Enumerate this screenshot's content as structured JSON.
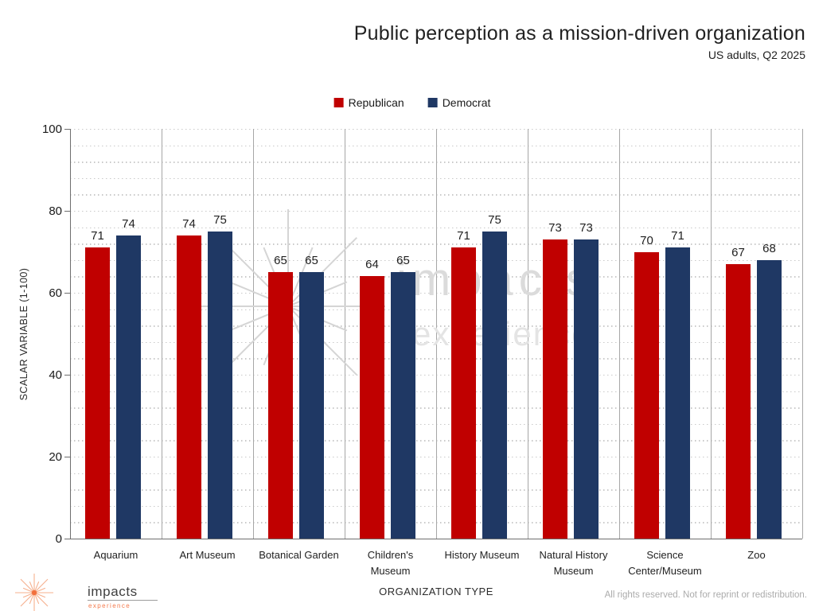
{
  "title": "Public perception as a mission-driven organization",
  "subtitle": "US adults, Q2 2025",
  "legend": [
    {
      "label": "Republican",
      "color": "#C00000"
    },
    {
      "label": "Democrat",
      "color": "#1F3864"
    }
  ],
  "chart_data": {
    "type": "bar",
    "title": "Public perception as a mission-driven organization",
    "subtitle": "US adults, Q2 2025",
    "categories": [
      "Aquarium",
      "Art Museum",
      "Botanical Garden",
      "Children's Museum",
      "History Museum",
      "Natural History Museum",
      "Science Center/Museum",
      "Zoo"
    ],
    "categories_display": [
      "Aquarium",
      "Art Museum",
      "Botanical Garden",
      "Children's\nMuseum",
      "History Museum",
      "Natural History\nMuseum",
      "Science\nCenter/Museum",
      "Zoo"
    ],
    "series": [
      {
        "name": "Republican",
        "color": "#C00000",
        "values": [
          71,
          74,
          65,
          64,
          71,
          73,
          70,
          67
        ]
      },
      {
        "name": "Democrat",
        "color": "#1F3864",
        "values": [
          74,
          75,
          65,
          65,
          75,
          73,
          71,
          68
        ]
      }
    ],
    "xlabel": "ORGANIZATION TYPE",
    "ylabel": "SCALAR VARIABLE (1-100)",
    "ylim": [
      0,
      100
    ],
    "yticks": [
      0,
      20,
      40,
      60,
      80,
      100
    ],
    "minor_unit": 4,
    "grid": "horizontal dotted minor gridlines, solid vertical category separators",
    "legend_position": "top-center",
    "data_labels": true
  },
  "watermark": {
    "line1": "impacts",
    "line2": "experience"
  },
  "footer": {
    "logo_line1": "impacts",
    "logo_line2": "experience",
    "copyright": "All rights reserved. Not for reprint or redistribution."
  },
  "colors": {
    "republican": "#C00000",
    "democrat": "#1F3864",
    "grid_dots": "#C9C9C9",
    "separator": "#A6A6A6",
    "axis": "#6E6E6E",
    "watermark_gray": "#D5D5D5",
    "logo_orange": "#F2703D",
    "logo_rays": "#F6B08E",
    "copyright_gray": "#ABABAB"
  }
}
